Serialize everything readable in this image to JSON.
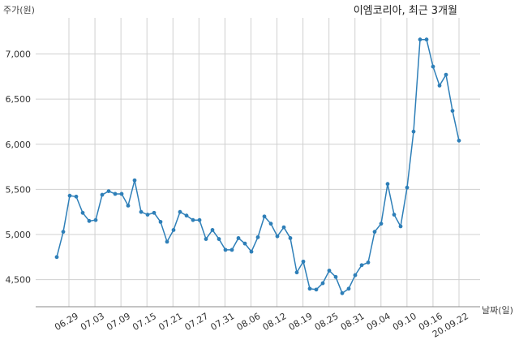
{
  "chart_data": {
    "type": "line",
    "title": "이엠코리아, 최근 3개월",
    "ylabel": "주가(원)",
    "xlabel": "날짜(일)",
    "ylim": [
      4200,
      7400
    ],
    "yticks": [
      4500,
      5000,
      5500,
      6000,
      6500,
      7000
    ],
    "ytick_labels": [
      "4,500",
      "5,000",
      "5,500",
      "6,000",
      "6,500",
      "7,000"
    ],
    "xtick_labels": [
      "06.29",
      "07.03",
      "07.09",
      "07.15",
      "07.21",
      "07.27",
      "07.31",
      "08.06",
      "08.12",
      "08.19",
      "08.25",
      "08.31",
      "09.04",
      "09.10",
      "09.16",
      "20.09.22"
    ],
    "grid": true,
    "line_color": "#2e7fb8",
    "series": [
      {
        "values": [
          4750,
          5030,
          5430,
          5420,
          5240,
          5150,
          5160,
          5440,
          5480,
          5450,
          5450,
          5320,
          5600,
          5250,
          5220,
          5240,
          5140,
          4920,
          5050,
          5250,
          5210,
          5160,
          5160,
          4950,
          5050,
          4950,
          4830,
          4830,
          4960,
          4900,
          4810,
          4970,
          5200,
          5120,
          4980,
          5080,
          4960,
          4580,
          4700,
          4400,
          4390,
          4460,
          4600,
          4530,
          4350,
          4400,
          4550,
          4660,
          4690,
          5030,
          5120,
          5560,
          5220,
          5090,
          5520,
          6140,
          7160,
          7160,
          6860,
          6650,
          6770,
          6370,
          6040
        ]
      }
    ]
  }
}
